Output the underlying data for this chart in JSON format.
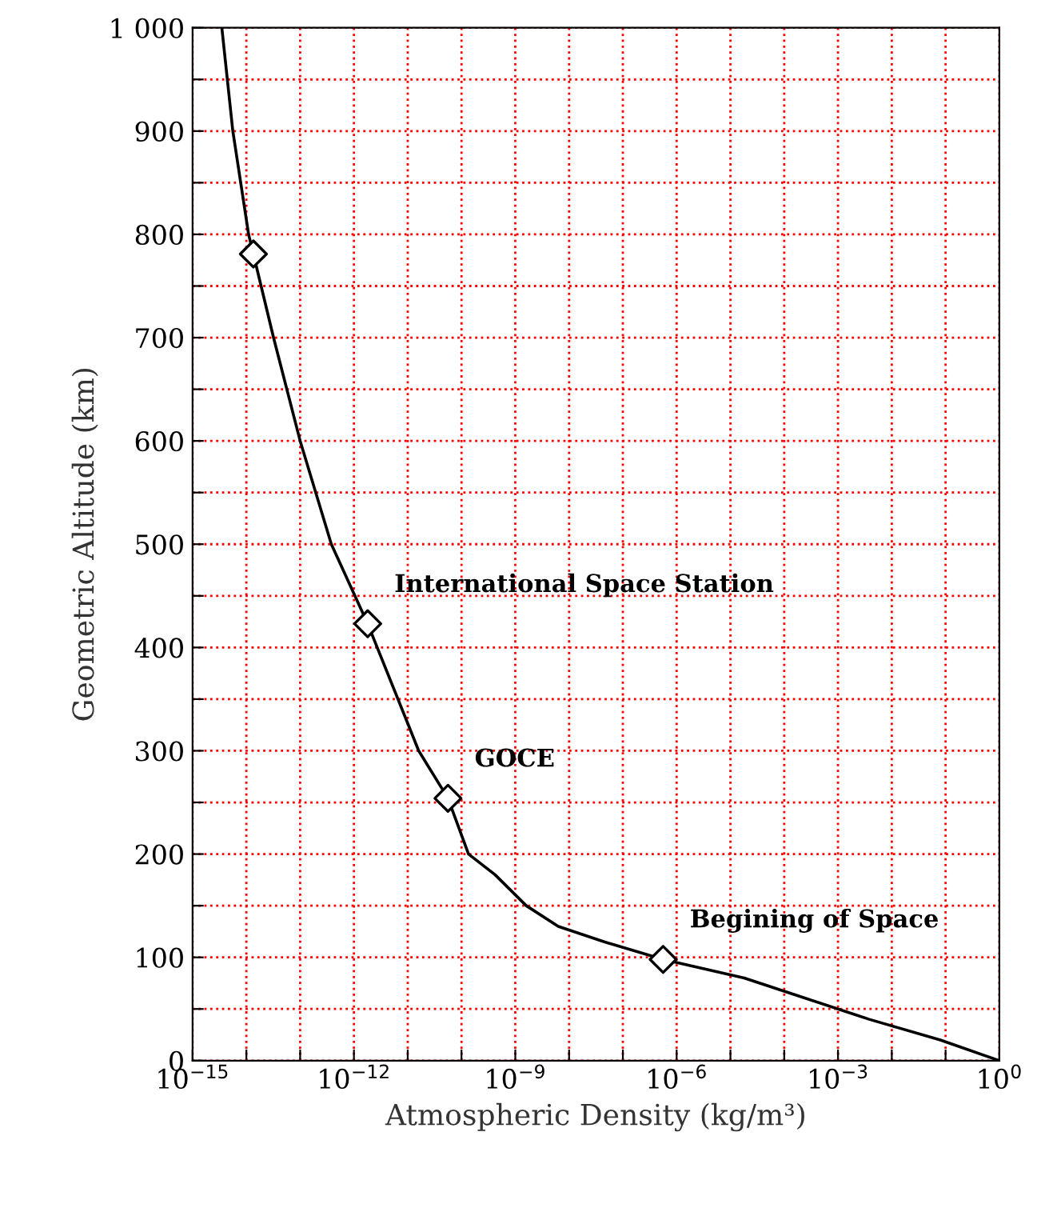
{
  "chart_data": {
    "type": "line",
    "xlabel": "Atmospheric Density (kg/m³)",
    "ylabel": "Geometric Altitude (km)",
    "log": "x",
    "grid": true,
    "legend": false,
    "xlim": [
      1e-15,
      1
    ],
    "ylim": [
      0,
      1000
    ],
    "xticks": [
      {
        "value": 1e-15,
        "label": "10$^{−15}$"
      },
      {
        "value": 1e-14,
        "label": null
      },
      {
        "value": 1e-13,
        "label": null
      },
      {
        "value": 1e-12,
        "label": "10$^{−12}$"
      },
      {
        "value": 1e-11,
        "label": null
      },
      {
        "value": 1e-10,
        "label": null
      },
      {
        "value": 1e-09,
        "label": "10$^{−9}$"
      },
      {
        "value": 1e-08,
        "label": null
      },
      {
        "value": 1e-07,
        "label": null
      },
      {
        "value": 1e-06,
        "label": "10$^{−6}$"
      },
      {
        "value": 1e-05,
        "label": null
      },
      {
        "value": 0.0001,
        "label": null
      },
      {
        "value": 0.001,
        "label": "10$^{−3}$"
      },
      {
        "value": 0.01,
        "label": null
      },
      {
        "value": 0.1,
        "label": null
      },
      {
        "value": 1,
        "label": "10$^{0}$"
      }
    ],
    "yticks": [
      0,
      {
        "value": 50,
        "label": null
      },
      100,
      {
        "value": 150,
        "label": null
      },
      200,
      {
        "value": 250,
        "label": null
      },
      300,
      {
        "value": 350,
        "label": null
      },
      400,
      {
        "value": 450,
        "label": null
      },
      500,
      {
        "value": 550,
        "label": null
      },
      600,
      {
        "value": 650,
        "label": null
      },
      700,
      {
        "value": 750,
        "label": null
      },
      800,
      {
        "value": 850,
        "label": null
      },
      900,
      {
        "value": 950,
        "label": null
      },
      {
        "value": 1000,
        "label": "1 000"
      }
    ],
    "series": [
      {
        "color": "#000000",
        "marker": "none",
        "line_style": "solid",
        "x": [
          3.5e-15,
          5.6e-15,
          1.1e-14,
          1.35e-14,
          3.2e-14,
          1e-13,
          3.8e-13,
          1.8e-12,
          1.6e-11,
          5.6e-11,
          1.35e-10,
          4.2e-10,
          1.6e-09,
          6.3e-09,
          4.5e-08,
          5.6e-07,
          1.8e-05,
          0.00026,
          0.0038,
          0.08,
          1
        ],
        "values": [
          1000,
          900,
          800,
          781,
          700,
          600,
          500,
          423,
          300,
          254,
          200,
          180,
          150,
          130,
          115,
          98,
          80,
          60,
          40,
          20,
          0
        ]
      },
      {
        "type": "scatter",
        "color": "#000000",
        "marker": "diamond",
        "x": [
          1.35e-14,
          1.8e-12,
          5.6e-11,
          5.6e-07
        ],
        "values": [
          781,
          423,
          254,
          98
        ]
      }
    ],
    "annotations": [
      {
        "text": "International Space Station",
        "x": 1.8e-12,
        "y": 423
      },
      {
        "text": "GOCE",
        "x": 5.6e-11,
        "y": 254
      },
      {
        "text": "Begining of Space",
        "x": 5.6e-07,
        "y": 98
      }
    ]
  }
}
